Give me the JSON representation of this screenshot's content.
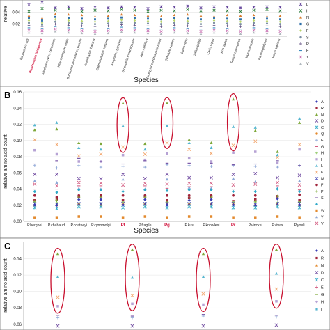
{
  "figure": {
    "panels": [
      {
        "id": "A",
        "label": ""
      },
      {
        "id": "B",
        "label": "B"
      },
      {
        "id": "C",
        "label": "C"
      }
    ]
  },
  "chart_data": [
    {
      "panel": "A",
      "type": "scatter",
      "title": "",
      "xlabel": "Species",
      "ylabel": "relative",
      "ylim": [
        0.0,
        0.06
      ],
      "yticks": [
        0.02,
        0.04
      ],
      "ytick_labels": [
        "0.02",
        "0.04"
      ],
      "grid": true,
      "legend": {
        "position": "right",
        "entries": [
          "L",
          "I",
          "N",
          "G",
          "F",
          "S",
          "R",
          "E",
          "Y",
          "V"
        ],
        "colors": [
          "#5b3b95",
          "#2a7a3a",
          "#d87a2c",
          "#2e6fa8",
          "#b8d36a",
          "#7a8ea0",
          "#6b5a8a",
          "#3a8ac0",
          "#c86db0",
          "#b0b7bd"
        ]
      },
      "categories": [
        "Escherichia coli",
        "Plasmodium falciparum",
        "Saccharomyces cerevisiae",
        "Kluyveromyces lactis",
        "Schizosaccharomyces pombe",
        "Arabidopsis thaliana",
        "Caenorhabditis elegans",
        "Anopheles gambiae",
        "Drosophila melanogaster",
        "Apis mellifera",
        "Strongylocentrotus purpuratus",
        "Trifolium rubrum",
        "Danio rerio",
        "Gallus gallus",
        "Canis lupus",
        "Bos taurus",
        "Rattus norvegicus",
        "Mus musculus",
        "Pan troglodytes",
        "Homo sapiens"
      ],
      "highlight": [
        "Plasmodium falciparum"
      ],
      "series": [
        {
          "values": [
            0.052,
            0.056,
            0.047,
            0.049,
            0.046,
            0.048,
            0.047,
            0.049,
            0.048,
            0.046,
            0.049,
            0.048,
            0.05,
            0.047,
            0.049,
            0.048,
            0.047,
            0.048,
            0.049,
            0.048
          ]
        },
        {
          "values": [
            0.041,
            0.046,
            0.043,
            0.045,
            0.041,
            0.043,
            0.042,
            0.044,
            0.043,
            0.041,
            0.043,
            0.042,
            0.044,
            0.042,
            0.043,
            0.042,
            0.041,
            0.043,
            0.044,
            0.042
          ]
        },
        {
          "values": [
            0.034,
            0.03,
            0.037,
            0.036,
            0.035,
            0.033,
            0.034,
            0.036,
            0.035,
            0.034,
            0.033,
            0.035,
            0.036,
            0.034,
            0.033,
            0.035,
            0.034,
            0.035,
            0.033,
            0.034
          ]
        },
        {
          "values": [
            0.03,
            0.026,
            0.032,
            0.03,
            0.029,
            0.028,
            0.029,
            0.031,
            0.03,
            0.029,
            0.028,
            0.03,
            0.029,
            0.028,
            0.03,
            0.029,
            0.028,
            0.03,
            0.029,
            0.028
          ]
        },
        {
          "values": [
            0.026,
            0.022,
            0.028,
            0.026,
            0.025,
            0.024,
            0.025,
            0.027,
            0.026,
            0.025,
            0.024,
            0.026,
            0.025,
            0.024,
            0.026,
            0.025,
            0.024,
            0.026,
            0.025,
            0.024
          ]
        },
        {
          "values": [
            0.022,
            0.019,
            0.024,
            0.022,
            0.021,
            0.02,
            0.021,
            0.023,
            0.022,
            0.021,
            0.02,
            0.022,
            0.021,
            0.02,
            0.022,
            0.021,
            0.02,
            0.022,
            0.021,
            0.02
          ]
        },
        {
          "values": [
            0.018,
            0.016,
            0.02,
            0.018,
            0.017,
            0.016,
            0.017,
            0.019,
            0.018,
            0.017,
            0.016,
            0.018,
            0.017,
            0.016,
            0.018,
            0.017,
            0.016,
            0.018,
            0.017,
            0.016
          ]
        },
        {
          "values": [
            0.014,
            0.013,
            0.016,
            0.014,
            0.013,
            0.012,
            0.013,
            0.015,
            0.014,
            0.013,
            0.012,
            0.014,
            0.013,
            0.012,
            0.014,
            0.013,
            0.012,
            0.014,
            0.013,
            0.012
          ]
        },
        {
          "values": [
            0.01,
            0.009,
            0.012,
            0.01,
            0.009,
            0.008,
            0.009,
            0.011,
            0.01,
            0.009,
            0.008,
            0.01,
            0.009,
            0.008,
            0.01,
            0.009,
            0.008,
            0.01,
            0.009,
            0.008
          ]
        },
        {
          "values": [
            0.006,
            0.005,
            0.008,
            0.006,
            0.005,
            0.004,
            0.005,
            0.007,
            0.006,
            0.005,
            0.004,
            0.006,
            0.005,
            0.004,
            0.006,
            0.005,
            0.004,
            0.006,
            0.005,
            0.004
          ]
        }
      ]
    },
    {
      "panel": "B",
      "type": "scatter",
      "title": "",
      "xlabel": "Species",
      "ylabel": "relative amino acid count",
      "ylim": [
        0.0,
        0.16
      ],
      "yticks": [
        0.0,
        0.02,
        0.04,
        0.06,
        0.08,
        0.1,
        0.12,
        0.14,
        0.16
      ],
      "ytick_labels": [
        "0.00",
        "0.02",
        "0.04",
        "0.06",
        "0.08",
        "0.10",
        "0.12",
        "0.14",
        "0.16"
      ],
      "grid": true,
      "categories": [
        "P.berghei",
        "P.chabaudi",
        "P.coatneyi",
        "P.cynomolgi",
        "Pf",
        "P.fragile",
        "Pg",
        "P.knowlesi",
        "P.knowlesi",
        "Pr",
        "P.vinckei",
        "P.vivax",
        "P.yoelii"
      ],
      "category_labels": [
        "P.berghei",
        "P.chabaudi",
        "P.coatneyi",
        "P.cynomolgi",
        "Pf",
        "P.fragile",
        "Pg",
        "P.kus",
        "P.knowlesi",
        "Pr",
        "P.vinckei",
        "P.vivax",
        "P.yoeli"
      ],
      "highlight": [
        "Pf",
        "Pg",
        "Pr"
      ],
      "legend": {
        "position": "right",
        "entries": [
          "A",
          "R",
          "N",
          "D",
          "C",
          "Q",
          "E",
          "G",
          "H",
          "I",
          "L",
          "K",
          "M",
          "F",
          "P",
          "S",
          "T",
          "W",
          "Y",
          "V"
        ],
        "markers": [
          "diamond",
          "square",
          "triangle",
          "x",
          "star",
          "circle",
          "plus",
          "dash",
          "diamond",
          "square",
          "triangle",
          "x",
          "star",
          "circle",
          "plus",
          "dash",
          "diamond",
          "square",
          "triangle",
          "x"
        ],
        "colors": [
          "#3b3fb5",
          "#a0243b",
          "#7ea83a",
          "#6f4aa0",
          "#2fa9c8",
          "#e38a2e",
          "#8da7d6",
          "#d35d82",
          "#9fd07a",
          "#b6a2d4",
          "#56b6d0",
          "#f2a46a",
          "#3b3fb5",
          "#a0243b",
          "#7ea83a",
          "#6f4aa0",
          "#2fa9c8",
          "#e38a2e",
          "#8da7d6",
          "#d35d82"
        ]
      },
      "series": [
        {
          "name": "N",
          "values": [
            0.113,
            0.114,
            0.097,
            0.096,
            0.146,
            0.096,
            0.146,
            0.101,
            0.097,
            0.151,
            0.112,
            0.086,
            0.122
          ]
        },
        {
          "name": "L",
          "values": [
            0.119,
            0.122,
            0.091,
            0.089,
            0.118,
            0.089,
            0.118,
            0.097,
            0.091,
            0.117,
            0.116,
            0.082,
            0.127
          ]
        },
        {
          "name": "K",
          "values": [
            0.101,
            0.095,
            0.081,
            0.083,
            0.092,
            0.083,
            0.097,
            0.089,
            0.084,
            0.094,
            0.099,
            0.079,
            0.095
          ]
        },
        {
          "name": "I",
          "values": [
            0.088,
            0.083,
            0.074,
            0.074,
            0.082,
            0.076,
            0.084,
            0.078,
            0.074,
            0.085,
            0.086,
            0.072,
            0.089
          ]
        },
        {
          "name": "E",
          "values": [
            0.069,
            0.066,
            0.069,
            0.067,
            0.068,
            0.067,
            0.07,
            0.069,
            0.068,
            0.069,
            0.068,
            0.067,
            0.069
          ]
        },
        {
          "name": "S",
          "values": [
            0.071,
            0.075,
            0.078,
            0.074,
            0.071,
            0.075,
            0.072,
            0.072,
            0.072,
            0.07,
            0.071,
            0.075,
            0.069
          ]
        },
        {
          "name": "D",
          "values": [
            0.058,
            0.058,
            0.053,
            0.053,
            0.058,
            0.053,
            0.058,
            0.054,
            0.054,
            0.058,
            0.059,
            0.054,
            0.057
          ]
        },
        {
          "name": "Y",
          "values": [
            0.05,
            0.048,
            0.041,
            0.04,
            0.052,
            0.04,
            0.052,
            0.042,
            0.041,
            0.053,
            0.049,
            0.041,
            0.05
          ]
        },
        {
          "name": "G",
          "values": [
            0.04,
            0.04,
            0.044,
            0.044,
            0.04,
            0.044,
            0.041,
            0.043,
            0.043,
            0.04,
            0.04,
            0.044,
            0.039
          ]
        },
        {
          "name": "V",
          "values": [
            0.046,
            0.044,
            0.048,
            0.047,
            0.045,
            0.047,
            0.046,
            0.047,
            0.047,
            0.045,
            0.046,
            0.048,
            0.045
          ]
        },
        {
          "name": "T",
          "values": [
            0.037,
            0.036,
            0.039,
            0.039,
            0.037,
            0.039,
            0.038,
            0.039,
            0.039,
            0.037,
            0.037,
            0.04,
            0.037
          ]
        },
        {
          "name": "F",
          "values": [
            0.032,
            0.03,
            0.032,
            0.032,
            0.032,
            0.032,
            0.032,
            0.032,
            0.032,
            0.032,
            0.032,
            0.031,
            0.033
          ]
        },
        {
          "name": "R",
          "values": [
            0.026,
            0.027,
            0.03,
            0.031,
            0.026,
            0.031,
            0.026,
            0.029,
            0.03,
            0.025,
            0.027,
            0.031,
            0.026
          ]
        },
        {
          "name": "H",
          "values": [
            0.024,
            0.023,
            0.022,
            0.022,
            0.024,
            0.022,
            0.023,
            0.022,
            0.022,
            0.024,
            0.024,
            0.023,
            0.024
          ]
        },
        {
          "name": "P",
          "values": [
            0.025,
            0.026,
            0.03,
            0.03,
            0.023,
            0.03,
            0.024,
            0.029,
            0.03,
            0.023,
            0.025,
            0.031,
            0.024
          ]
        },
        {
          "name": "Q",
          "values": [
            0.02,
            0.02,
            0.021,
            0.02,
            0.021,
            0.021,
            0.021,
            0.021,
            0.021,
            0.021,
            0.02,
            0.021,
            0.02
          ]
        },
        {
          "name": "A",
          "values": [
            0.02,
            0.02,
            0.027,
            0.027,
            0.02,
            0.027,
            0.02,
            0.026,
            0.027,
            0.02,
            0.02,
            0.028,
            0.02
          ]
        },
        {
          "name": "M",
          "values": [
            0.022,
            0.021,
            0.022,
            0.022,
            0.022,
            0.022,
            0.022,
            0.022,
            0.022,
            0.022,
            0.021,
            0.022,
            0.022
          ]
        },
        {
          "name": "C",
          "values": [
            0.017,
            0.016,
            0.018,
            0.018,
            0.017,
            0.018,
            0.017,
            0.018,
            0.018,
            0.017,
            0.017,
            0.018,
            0.017
          ]
        },
        {
          "name": "W",
          "values": [
            0.005,
            0.005,
            0.006,
            0.006,
            0.005,
            0.006,
            0.005,
            0.006,
            0.006,
            0.005,
            0.005,
            0.006,
            0.005
          ]
        }
      ]
    },
    {
      "panel": "C",
      "type": "scatter",
      "title": "",
      "xlabel": "",
      "ylabel": "relative amino acid count",
      "ylim": [
        0.06,
        0.16
      ],
      "yticks": [
        0.06,
        0.08,
        0.1,
        0.12,
        0.14
      ],
      "ytick_labels": [
        "0.06",
        "0.08",
        "0.10",
        "0.12",
        "0.14"
      ],
      "grid": true,
      "legend": {
        "position": "right",
        "entries": [
          "A",
          "R",
          "N",
          "D",
          "C",
          "E",
          "G",
          "H",
          "I"
        ],
        "colors": [
          "#3b3fb5",
          "#a0243b",
          "#e38a2e",
          "#6f4aa0",
          "#2fa9c8",
          "#d35d82",
          "#7ea83a",
          "#b6a2d4",
          "#56b6d0"
        ]
      },
      "groups": 4,
      "series": [
        {
          "name": "N",
          "values": [
            0.146,
            0.151,
            0.146,
            0.151
          ]
        },
        {
          "name": "L",
          "values": [
            0.118,
            0.117,
            0.118,
            0.122
          ]
        },
        {
          "name": "K",
          "values": [
            0.093,
            0.095,
            0.097,
            0.103
          ]
        },
        {
          "name": "I",
          "values": [
            0.082,
            0.085,
            0.084,
            0.088
          ]
        },
        {
          "name": "S",
          "values": [
            0.071,
            0.07,
            0.072,
            0.071
          ]
        },
        {
          "name": "E",
          "values": [
            0.068,
            0.068,
            0.07,
            0.069
          ]
        },
        {
          "name": "D",
          "values": [
            0.058,
            0.058,
            0.058,
            0.059
          ]
        }
      ]
    }
  ]
}
